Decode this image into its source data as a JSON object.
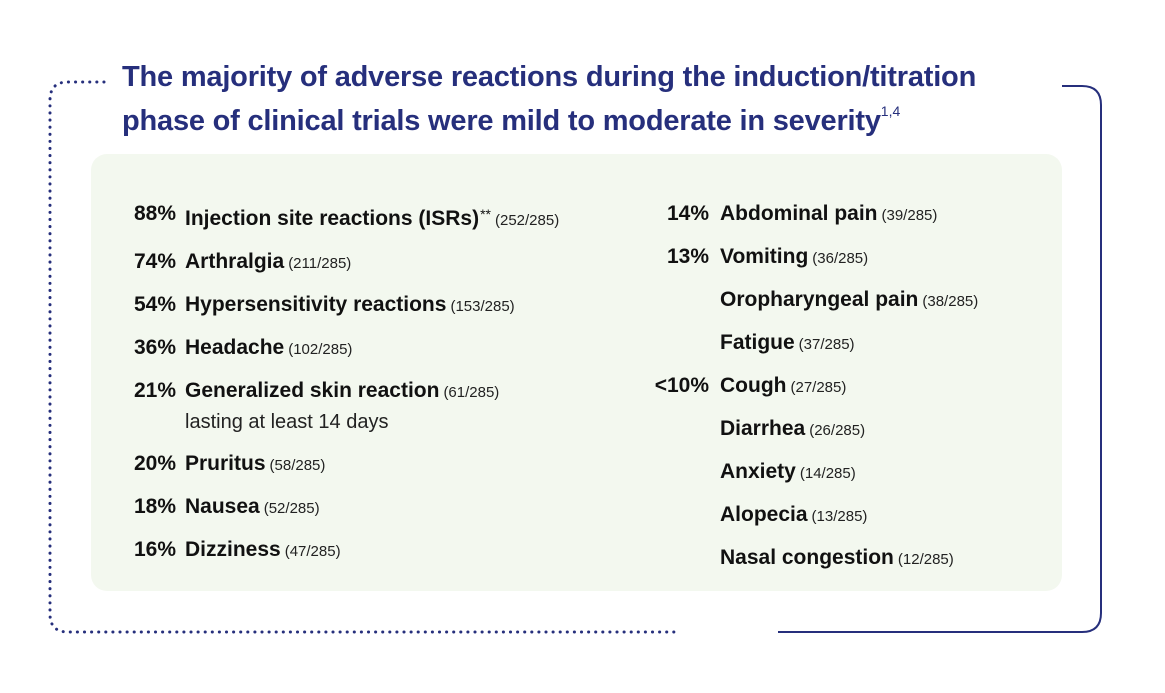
{
  "title": {
    "text": "The majority of adverse reactions during the induction/titration phase of clinical trials were mild to moderate in severity",
    "superscript": "1,4"
  },
  "left_column": [
    {
      "pct": "88%",
      "label": "Injection site reactions (ISRs)",
      "marker": "**",
      "count": "(252/285)"
    },
    {
      "pct": "74%",
      "label": "Arthralgia",
      "count": "(211/285)"
    },
    {
      "pct": "54%",
      "label": "Hypersensitivity reactions",
      "count": "(153/285)"
    },
    {
      "pct": "36%",
      "label": "Headache",
      "count": "(102/285)"
    },
    {
      "pct": "21%",
      "label": "Generalized skin reaction",
      "count": "(61/285)",
      "sub": "lasting at least 14 days"
    },
    {
      "pct": "20%",
      "label": "Pruritus",
      "count": "(58/285)"
    },
    {
      "pct": "18%",
      "label": "Nausea",
      "count": "(52/285)"
    },
    {
      "pct": "16%",
      "label": "Dizziness",
      "count": "(47/285)"
    }
  ],
  "right_column": [
    {
      "pct": "14%",
      "label": "Abdominal pain",
      "count": "(39/285)"
    },
    {
      "pct": "13%",
      "label": "Vomiting",
      "count": "(36/285)"
    },
    {
      "pct": "",
      "label": "Oropharyngeal pain",
      "count": "(38/285)"
    },
    {
      "pct": "",
      "label": "Fatigue",
      "count": "(37/285)"
    },
    {
      "pct": "<10%",
      "label": "Cough",
      "count": "(27/285)"
    },
    {
      "pct": "",
      "label": "Diarrhea",
      "count": "(26/285)"
    },
    {
      "pct": "",
      "label": "Anxiety",
      "count": "(14/285)"
    },
    {
      "pct": "",
      "label": "Alopecia",
      "count": "(13/285)"
    },
    {
      "pct": "",
      "label": "Nasal congestion",
      "count": "(12/285)"
    }
  ],
  "colors": {
    "title": "#262f7c",
    "frame": "#262f7c",
    "panel": "#f3f8ef",
    "text": "#111111"
  }
}
